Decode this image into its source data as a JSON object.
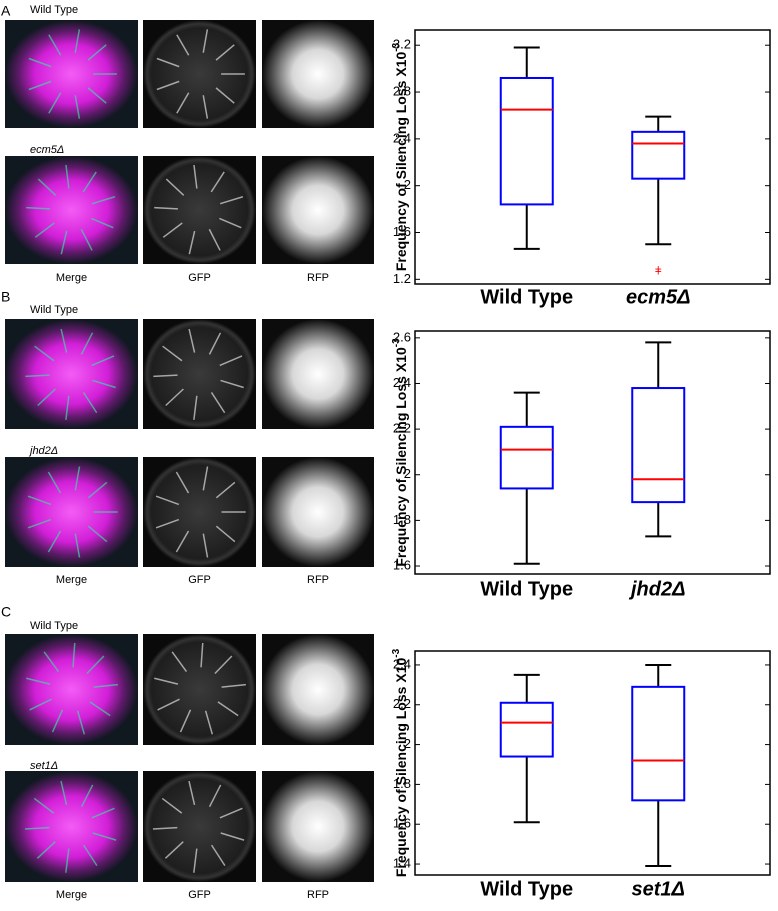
{
  "panels": [
    {
      "letter": "A",
      "rows": [
        "Wild Type",
        "ecm5Δ"
      ],
      "columns": [
        "Merge",
        "GFP",
        "RFP"
      ]
    },
    {
      "letter": "B",
      "rows": [
        "Wild Type",
        "jhd2Δ"
      ],
      "columns": [
        "Merge",
        "GFP",
        "RFP"
      ]
    },
    {
      "letter": "C",
      "rows": [
        "Wild Type",
        "set1Δ"
      ],
      "columns": [
        "Merge",
        "GFP",
        "RFP"
      ]
    }
  ],
  "chart_data": [
    {
      "type": "box",
      "ylabel": "Frequency of Silencing Loss X10",
      "ylabel_sup": "-3",
      "categories": [
        "Wild Type",
        "ecm5Δ"
      ],
      "box_color": "#0000ff",
      "median_color": "#ff0000",
      "whisker_color": "#000000",
      "boxes": [
        {
          "min": 1.46,
          "q1": 1.84,
          "median": 2.65,
          "q3": 2.92,
          "max": 3.18,
          "outliers": []
        },
        {
          "min": 1.5,
          "q1": 2.06,
          "median": 2.36,
          "q3": 2.46,
          "max": 2.59,
          "outliers": [
            1.28,
            1.26
          ]
        }
      ],
      "ylim": [
        1.16,
        3.33
      ],
      "yticks": [
        1.2,
        1.6,
        2,
        2.4,
        2.8,
        3.2
      ]
    },
    {
      "type": "box",
      "ylabel": "Frequency of Silencing Loss X10",
      "ylabel_sup": "-3",
      "categories": [
        "Wild Type",
        "jhd2Δ"
      ],
      "box_color": "#0000ff",
      "median_color": "#ff0000",
      "whisker_color": "#000000",
      "boxes": [
        {
          "min": 1.61,
          "q1": 1.94,
          "median": 2.11,
          "q3": 2.21,
          "max": 2.36,
          "outliers": []
        },
        {
          "min": 1.73,
          "q1": 1.88,
          "median": 1.98,
          "q3": 2.38,
          "max": 2.58,
          "outliers": []
        }
      ],
      "ylim": [
        1.565,
        2.63
      ],
      "yticks": [
        1.6,
        1.8,
        2,
        2.2,
        2.4,
        2.6
      ]
    },
    {
      "type": "box",
      "ylabel": "Frequency of Silencing Loss X10",
      "ylabel_sup": "-3",
      "categories": [
        "Wild Type",
        "set1Δ"
      ],
      "box_color": "#0000ff",
      "median_color": "#ff0000",
      "whisker_color": "#000000",
      "boxes": [
        {
          "min": 1.61,
          "q1": 1.94,
          "median": 2.11,
          "q3": 2.21,
          "max": 2.35,
          "outliers": []
        },
        {
          "min": 1.39,
          "q1": 1.72,
          "median": 1.92,
          "q3": 2.29,
          "max": 2.4,
          "outliers": []
        }
      ],
      "ylim": [
        1.345,
        2.47
      ],
      "yticks": [
        1.4,
        1.6,
        1.8,
        2,
        2.2,
        2.4
      ]
    }
  ]
}
